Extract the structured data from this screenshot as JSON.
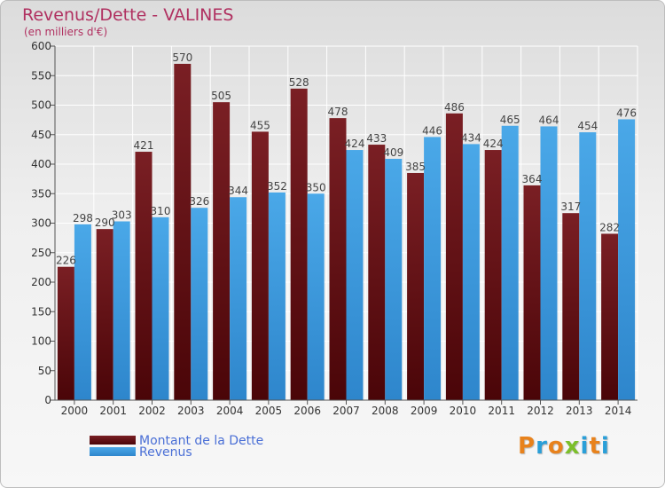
{
  "header": {
    "title": "Revenus/Dette - VALINES",
    "subtitle": "(en milliers d'€)"
  },
  "legend": {
    "debt_label": "Montant de la Dette",
    "revenue_label": "Revenus"
  },
  "logo": {
    "text": "Proxiti",
    "letters": [
      "P",
      "r",
      "o",
      "x",
      "i",
      "t",
      "i"
    ]
  },
  "colors": {
    "debt": "#7a1f24",
    "debt_dark": "#4a0508",
    "revenue": "#4aa8e8",
    "revenue_dark": "#2e86cc",
    "axis_text": "#333333",
    "value_text": "#444444",
    "grid": "#ffffff",
    "logo": [
      "#e8821c",
      "#2a9fd8",
      "#e8821c",
      "#7cbf2a",
      "#2a9fd8",
      "#e8821c",
      "#2a9fd8"
    ]
  },
  "chart_data": {
    "type": "bar",
    "categories": [
      "2000",
      "2001",
      "2002",
      "2003",
      "2004",
      "2005",
      "2006",
      "2007",
      "2008",
      "2009",
      "2010",
      "2011",
      "2012",
      "2013",
      "2014"
    ],
    "series": [
      {
        "name": "Montant de la Dette",
        "values": [
          226,
          290,
          421,
          570,
          505,
          455,
          528,
          478,
          433,
          385,
          486,
          424,
          364,
          317,
          282
        ]
      },
      {
        "name": "Revenus",
        "values": [
          298,
          303,
          310,
          326,
          344,
          352,
          350,
          424,
          409,
          446,
          434,
          465,
          464,
          454,
          476
        ]
      }
    ],
    "ylim": [
      0,
      600
    ],
    "yticks": [
      0,
      50,
      100,
      150,
      200,
      250,
      300,
      350,
      400,
      450,
      500,
      550,
      600
    ],
    "grid": true,
    "legend_position": "bottom-left"
  }
}
